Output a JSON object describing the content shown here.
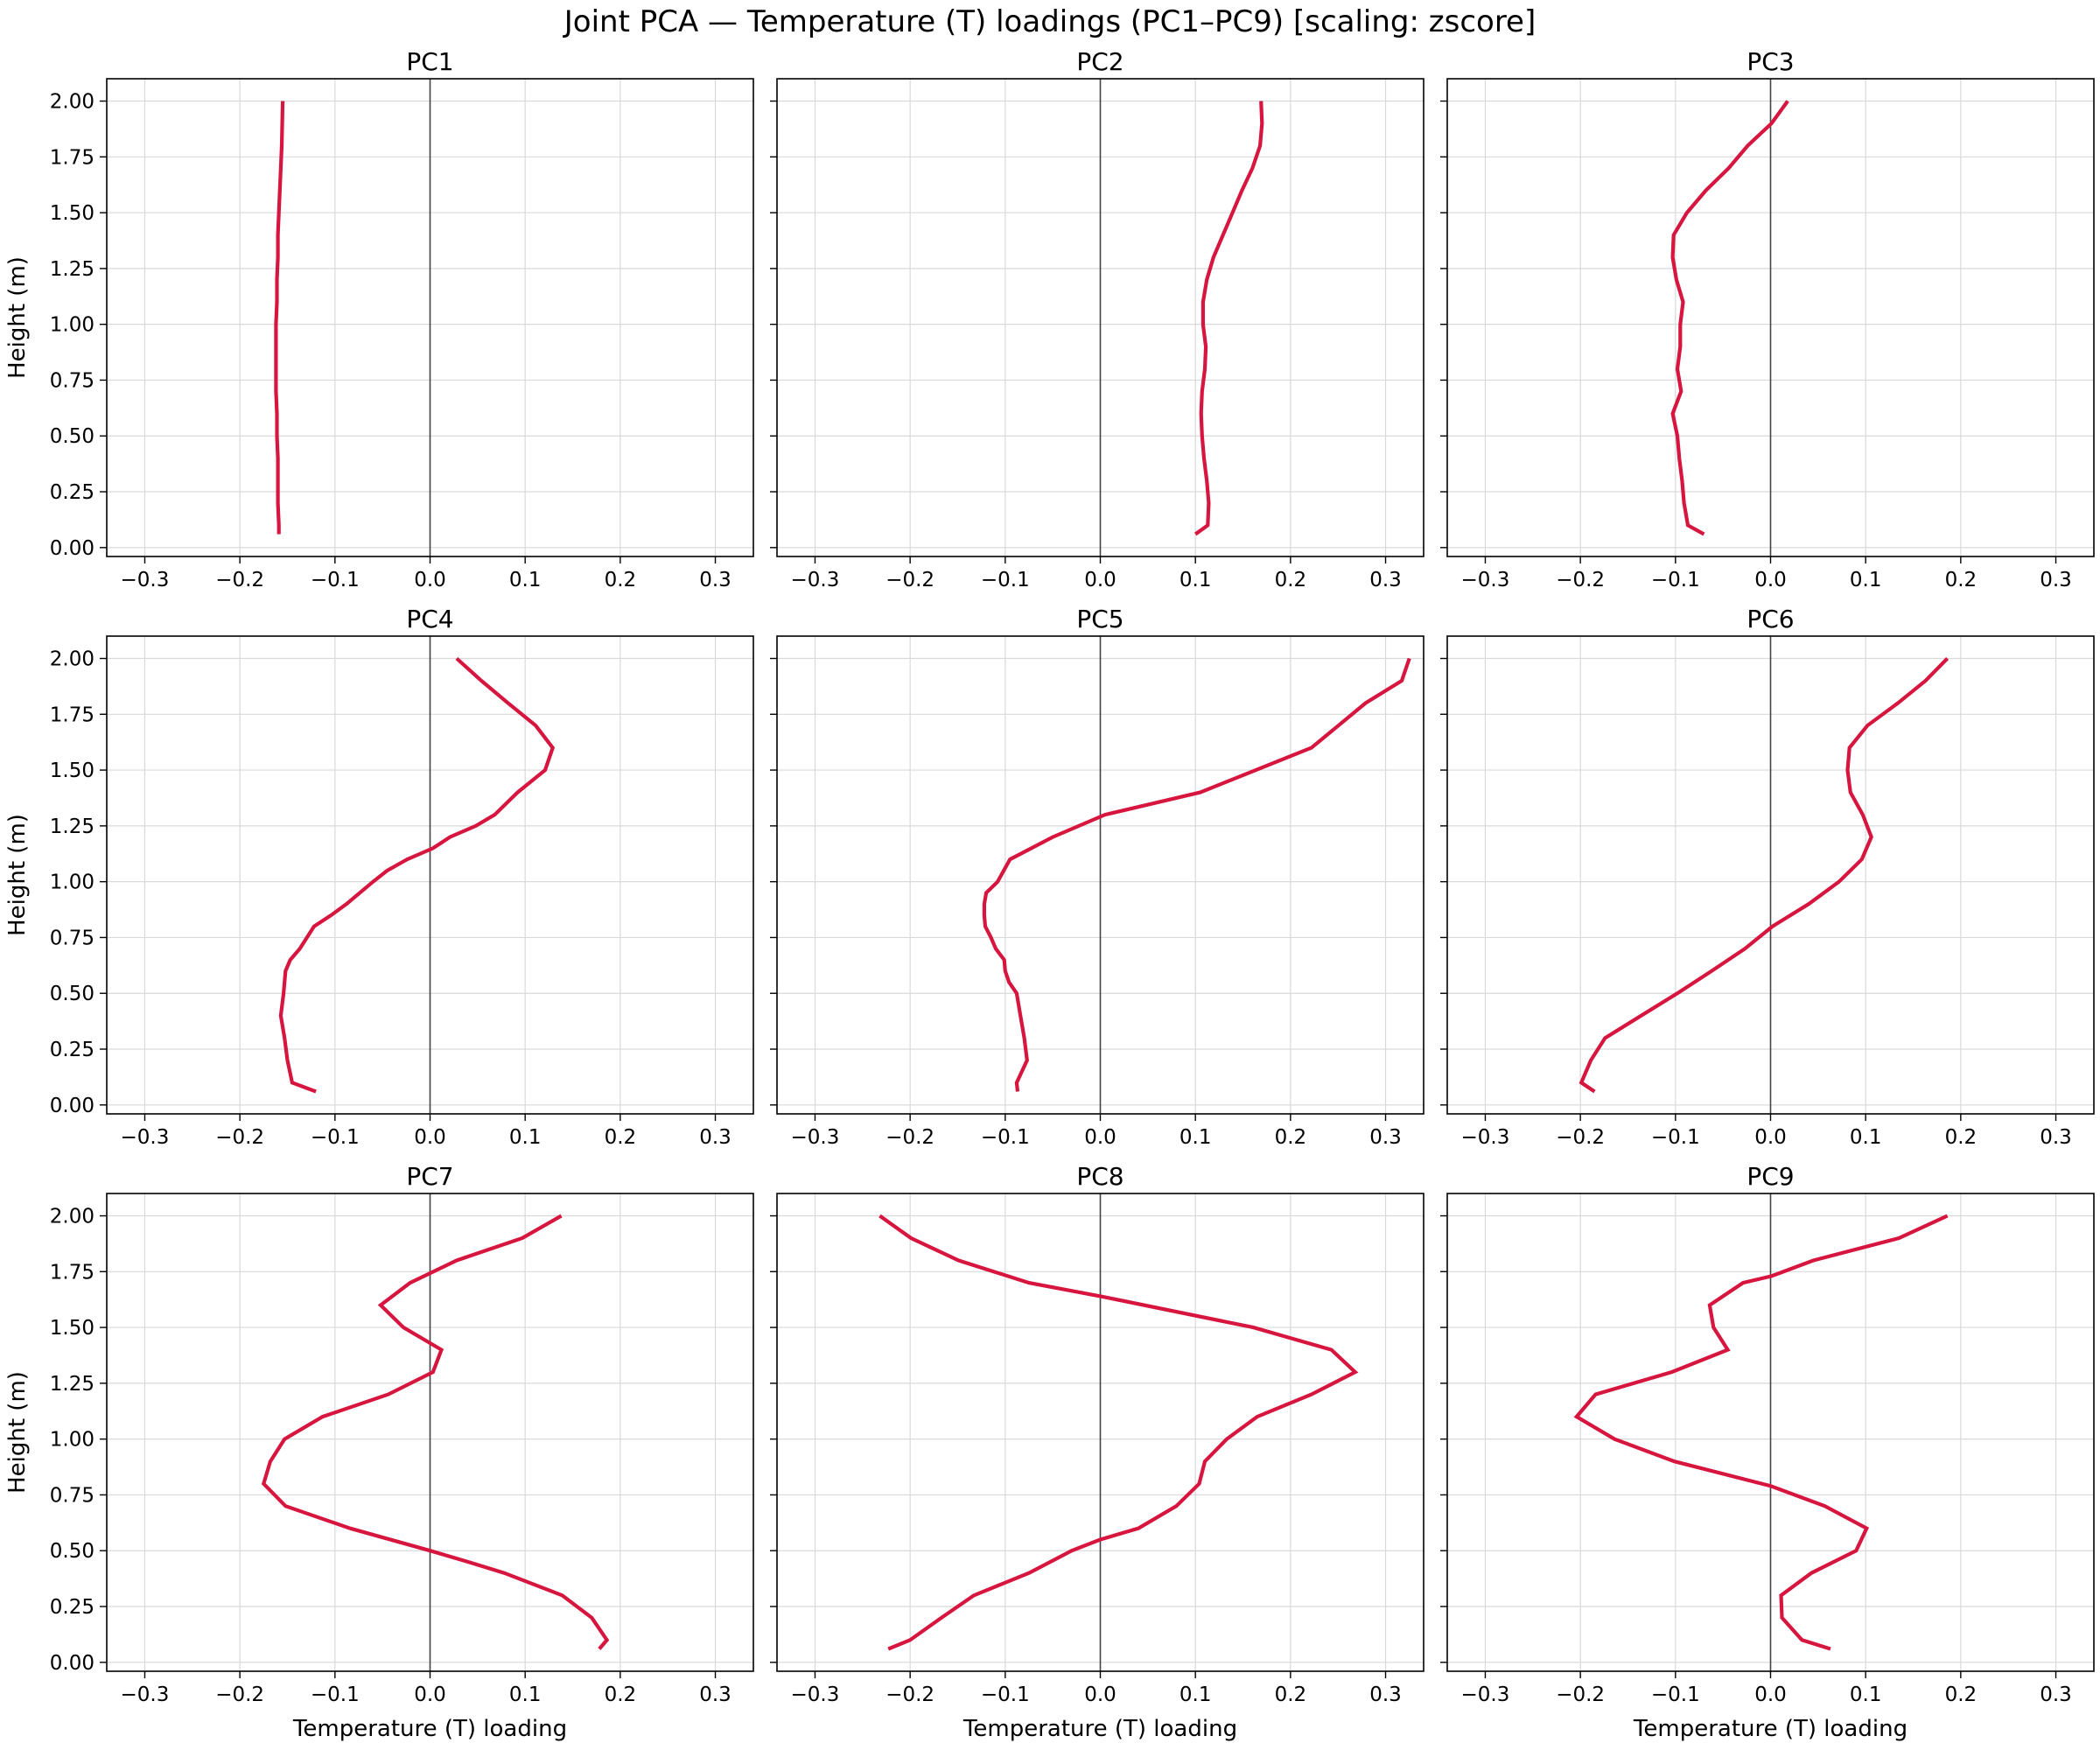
{
  "figure": {
    "title": "Joint PCA — Temperature (T) loadings (PC1–PC9)   [scaling: zscore]",
    "line_color": "#d7163f",
    "axis_line_color": "#444444",
    "grid_color": "#d9d9d9"
  },
  "chart_data": [
    {
      "type": "line",
      "title": "PC1",
      "xlabel": "",
      "ylabel": "Height (m)",
      "xlim": [
        -0.34,
        0.34
      ],
      "ylim": [
        -0.04,
        2.1
      ],
      "xticks": [
        "−0.3",
        "−0.2",
        "−0.1",
        "0.0",
        "0.1",
        "0.2",
        "0.3"
      ],
      "yticks": [
        "0.00",
        "0.25",
        "0.50",
        "0.75",
        "1.00",
        "1.25",
        "1.50",
        "1.75",
        "2.00"
      ],
      "grid": true,
      "series": [
        {
          "x": [
            -0.159,
            -0.159,
            -0.16,
            -0.16,
            -0.16,
            -0.161,
            -0.161,
            -0.162,
            -0.162,
            -0.162,
            -0.162,
            -0.161,
            -0.161,
            -0.16,
            -0.16,
            -0.159,
            -0.158,
            -0.157,
            -0.156,
            -0.155
          ],
          "y": [
            0.06,
            0.1,
            0.2,
            0.3,
            0.4,
            0.5,
            0.6,
            0.7,
            0.8,
            0.9,
            1.0,
            1.1,
            1.2,
            1.3,
            1.4,
            1.5,
            1.6,
            1.7,
            1.8,
            2.0
          ]
        }
      ]
    },
    {
      "type": "line",
      "title": "PC2",
      "xlabel": "",
      "ylabel": "",
      "xlim": [
        -0.34,
        0.34
      ],
      "ylim": [
        -0.04,
        2.1
      ],
      "xticks": [
        "−0.3",
        "−0.2",
        "−0.1",
        "0.0",
        "0.1",
        "0.2",
        "0.3"
      ],
      "yticks": [],
      "grid": true,
      "series": [
        {
          "x": [
            0.1,
            0.113,
            0.114,
            0.112,
            0.109,
            0.107,
            0.106,
            0.107,
            0.11,
            0.111,
            0.108,
            0.108,
            0.112,
            0.119,
            0.129,
            0.139,
            0.149,
            0.16,
            0.168,
            0.17,
            0.169
          ],
          "y": [
            0.06,
            0.1,
            0.2,
            0.3,
            0.4,
            0.5,
            0.6,
            0.7,
            0.8,
            0.9,
            1.0,
            1.1,
            1.2,
            1.3,
            1.4,
            1.5,
            1.6,
            1.7,
            1.8,
            1.9,
            2.0
          ]
        }
      ]
    },
    {
      "type": "line",
      "title": "PC3",
      "xlabel": "",
      "ylabel": "",
      "xlim": [
        -0.34,
        0.34
      ],
      "ylim": [
        -0.04,
        2.1
      ],
      "xticks": [
        "−0.3",
        "−0.2",
        "−0.1",
        "0.0",
        "0.1",
        "0.2",
        "0.3"
      ],
      "yticks": [],
      "grid": true,
      "series": [
        {
          "x": [
            -0.07,
            -0.087,
            -0.091,
            -0.093,
            -0.096,
            -0.098,
            -0.103,
            -0.094,
            -0.098,
            -0.095,
            -0.095,
            -0.092,
            -0.099,
            -0.103,
            -0.102,
            -0.088,
            -0.068,
            -0.044,
            -0.024,
            0.001,
            0.018
          ],
          "y": [
            0.06,
            0.1,
            0.2,
            0.3,
            0.4,
            0.5,
            0.6,
            0.7,
            0.8,
            0.9,
            1.0,
            1.1,
            1.2,
            1.3,
            1.4,
            1.5,
            1.6,
            1.7,
            1.8,
            1.9,
            2.0
          ]
        }
      ]
    },
    {
      "type": "line",
      "title": "PC4",
      "xlabel": "",
      "ylabel": "Height (m)",
      "xlim": [
        -0.34,
        0.34
      ],
      "ylim": [
        -0.04,
        2.1
      ],
      "xticks": [
        "−0.3",
        "−0.2",
        "−0.1",
        "0.0",
        "0.1",
        "0.2",
        "0.3"
      ],
      "yticks": [
        "0.00",
        "0.25",
        "0.50",
        "0.75",
        "1.00",
        "1.25",
        "1.50",
        "1.75",
        "2.00"
      ],
      "grid": true,
      "series": [
        {
          "x": [
            -0.12,
            -0.145,
            -0.15,
            -0.153,
            -0.157,
            -0.154,
            -0.152,
            -0.147,
            -0.137,
            -0.122,
            -0.104,
            -0.088,
            -0.06,
            -0.045,
            -0.024,
            0.003,
            0.021,
            0.048,
            0.068,
            0.092,
            0.121,
            0.129,
            0.111,
            0.082,
            0.054,
            0.028
          ],
          "y": [
            0.06,
            0.1,
            0.2,
            0.3,
            0.4,
            0.5,
            0.6,
            0.65,
            0.7,
            0.8,
            0.85,
            0.9,
            1.0,
            1.05,
            1.1,
            1.15,
            1.2,
            1.25,
            1.3,
            1.4,
            1.5,
            1.6,
            1.7,
            1.8,
            1.9,
            2.0
          ]
        }
      ]
    },
    {
      "type": "line",
      "title": "PC5",
      "xlabel": "",
      "ylabel": "",
      "xlim": [
        -0.34,
        0.34
      ],
      "ylim": [
        -0.04,
        2.1
      ],
      "xticks": [
        "−0.3",
        "−0.2",
        "−0.1",
        "0.0",
        "0.1",
        "0.2",
        "0.3"
      ],
      "yticks": [],
      "grid": true,
      "series": [
        {
          "x": [
            -0.087,
            -0.088,
            -0.077,
            -0.08,
            -0.084,
            -0.088,
            -0.096,
            -0.1,
            -0.101,
            -0.11,
            -0.115,
            -0.121,
            -0.122,
            -0.122,
            -0.12,
            -0.108,
            -0.095,
            -0.05,
            0.005,
            0.105,
            0.222,
            0.279,
            0.317,
            0.325
          ],
          "y": [
            0.06,
            0.1,
            0.2,
            0.3,
            0.4,
            0.5,
            0.55,
            0.6,
            0.65,
            0.7,
            0.75,
            0.8,
            0.85,
            0.9,
            0.95,
            1.0,
            1.1,
            1.2,
            1.3,
            1.4,
            1.6,
            1.8,
            1.9,
            2.0
          ]
        }
      ]
    },
    {
      "type": "line",
      "title": "PC6",
      "xlabel": "",
      "ylabel": "",
      "xlim": [
        -0.34,
        0.34
      ],
      "ylim": [
        -0.04,
        2.1
      ],
      "xticks": [
        "−0.3",
        "−0.2",
        "−0.1",
        "0.0",
        "0.1",
        "0.2",
        "0.3"
      ],
      "yticks": [],
      "grid": true,
      "series": [
        {
          "x": [
            -0.185,
            -0.199,
            -0.189,
            -0.174,
            -0.136,
            -0.098,
            -0.062,
            -0.027,
            0.002,
            0.04,
            0.072,
            0.096,
            0.106,
            0.097,
            0.084,
            0.081,
            0.082,
            0.083,
            0.102,
            0.134,
            0.163,
            0.186
          ],
          "y": [
            0.06,
            0.1,
            0.2,
            0.3,
            0.4,
            0.5,
            0.6,
            0.7,
            0.8,
            0.9,
            1.0,
            1.1,
            1.2,
            1.3,
            1.4,
            1.5,
            1.55,
            1.6,
            1.7,
            1.8,
            1.9,
            2.0
          ]
        }
      ]
    },
    {
      "type": "line",
      "title": "PC7",
      "xlabel": "Temperature (T) loading",
      "ylabel": "Height (m)",
      "xlim": [
        -0.34,
        0.34
      ],
      "ylim": [
        -0.04,
        2.1
      ],
      "xticks": [
        "−0.3",
        "−0.2",
        "−0.1",
        "0.0",
        "0.1",
        "0.2",
        "0.3"
      ],
      "yticks": [
        "0.00",
        "0.25",
        "0.50",
        "0.75",
        "1.00",
        "1.25",
        "1.50",
        "1.75",
        "2.00"
      ],
      "grid": true,
      "series": [
        {
          "x": [
            0.178,
            0.186,
            0.17,
            0.139,
            0.078,
            0.04,
            0.0,
            -0.084,
            -0.152,
            -0.175,
            -0.168,
            -0.153,
            -0.113,
            -0.044,
            0.003,
            0.012,
            -0.028,
            -0.052,
            -0.021,
            0.028,
            0.097,
            0.138
          ],
          "y": [
            0.06,
            0.1,
            0.2,
            0.3,
            0.4,
            0.45,
            0.5,
            0.6,
            0.7,
            0.8,
            0.9,
            1.0,
            1.1,
            1.2,
            1.3,
            1.4,
            1.5,
            1.6,
            1.7,
            1.8,
            1.9,
            2.0
          ]
        }
      ]
    },
    {
      "type": "line",
      "title": "PC8",
      "xlabel": "Temperature (T) loading",
      "ylabel": "",
      "xlim": [
        -0.34,
        0.34
      ],
      "ylim": [
        -0.04,
        2.1
      ],
      "xticks": [
        "−0.3",
        "−0.2",
        "−0.1",
        "0.0",
        "0.1",
        "0.2",
        "0.3"
      ],
      "yticks": [],
      "grid": true,
      "series": [
        {
          "x": [
            -0.223,
            -0.2,
            -0.167,
            -0.133,
            -0.075,
            -0.03,
            0.0,
            0.04,
            0.08,
            0.104,
            0.11,
            0.133,
            0.165,
            0.222,
            0.268,
            0.243,
            0.161,
            0.0,
            -0.075,
            -0.149,
            -0.199,
            -0.232
          ],
          "y": [
            0.06,
            0.1,
            0.2,
            0.3,
            0.4,
            0.5,
            0.55,
            0.6,
            0.7,
            0.8,
            0.9,
            1.0,
            1.1,
            1.2,
            1.3,
            1.4,
            1.5,
            1.64,
            1.7,
            1.8,
            1.9,
            2.0
          ]
        }
      ]
    },
    {
      "type": "line",
      "title": "PC9",
      "xlabel": "Temperature (T) loading",
      "ylabel": "",
      "xlim": [
        -0.34,
        0.34
      ],
      "ylim": [
        -0.04,
        2.1
      ],
      "xticks": [
        "−0.3",
        "−0.2",
        "−0.1",
        "0.0",
        "0.1",
        "0.2",
        "0.3"
      ],
      "yticks": [],
      "grid": true,
      "series": [
        {
          "x": [
            0.063,
            0.033,
            0.012,
            0.011,
            0.043,
            0.09,
            0.101,
            0.057,
            0.0,
            -0.101,
            -0.164,
            -0.204,
            -0.184,
            -0.104,
            -0.045,
            -0.06,
            -0.064,
            -0.029,
            0.001,
            0.045,
            0.135,
            0.186
          ],
          "y": [
            0.06,
            0.1,
            0.2,
            0.3,
            0.4,
            0.5,
            0.6,
            0.7,
            0.79,
            0.9,
            1.0,
            1.1,
            1.2,
            1.3,
            1.4,
            1.5,
            1.6,
            1.7,
            1.73,
            1.8,
            1.9,
            2.0
          ]
        }
      ]
    }
  ]
}
